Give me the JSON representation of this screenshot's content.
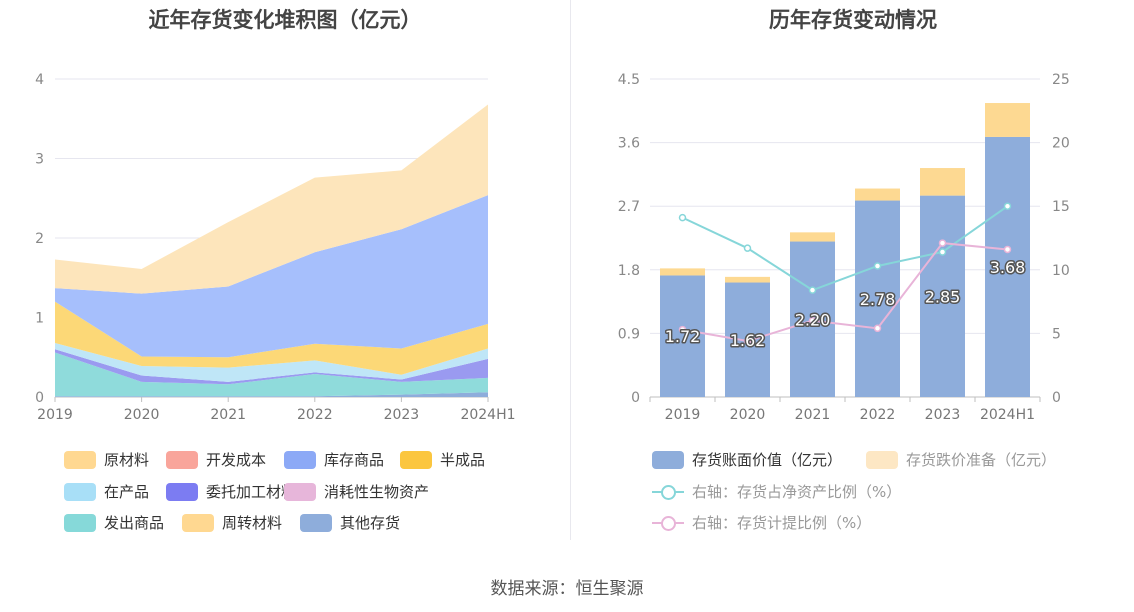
{
  "source_label": "数据来源：恒生聚源",
  "chart_data": [
    {
      "type": "area",
      "stacked": true,
      "title": "近年存货变化堆积图（亿元）",
      "categories": [
        "2019",
        "2020",
        "2021",
        "2022",
        "2023",
        "2024H1"
      ],
      "y_ticks": [
        "0",
        "1",
        "2",
        "3",
        "4"
      ],
      "ylim": [
        0,
        4
      ],
      "series": [
        {
          "name": "其他存货",
          "color": "#8eaddb",
          "values": [
            0.01,
            0.01,
            0.01,
            0.01,
            0.03,
            0.06
          ]
        },
        {
          "name": "发出商品",
          "color": "#8fdbdb",
          "values": [
            0.55,
            0.18,
            0.15,
            0.28,
            0.16,
            0.18
          ]
        },
        {
          "name": "委托加工材料",
          "color": "#9a9af0",
          "values": [
            0.04,
            0.08,
            0.03,
            0.02,
            0.03,
            0.24
          ]
        },
        {
          "name": "在产品",
          "color": "#bfe6f7",
          "values": [
            0.08,
            0.12,
            0.18,
            0.15,
            0.06,
            0.13
          ]
        },
        {
          "name": "半成品",
          "color": "#fcd877",
          "values": [
            0.52,
            0.12,
            0.13,
            0.21,
            0.33,
            0.31
          ]
        },
        {
          "name": "库存商品",
          "color": "#a6bffc",
          "values": [
            0.17,
            0.79,
            0.89,
            1.15,
            1.5,
            1.62
          ]
        },
        {
          "name": "原材料",
          "color": "#fde5bb",
          "values": [
            0.36,
            0.31,
            0.81,
            0.94,
            0.74,
            1.14
          ]
        },
        {
          "name": "开发成本",
          "color": "#f9a59b",
          "values": [
            0,
            0,
            0,
            0,
            0,
            0
          ]
        },
        {
          "name": "消耗性生物资产",
          "color": "#e7b6da",
          "values": [
            0,
            0,
            0,
            0,
            0,
            0
          ]
        },
        {
          "name": "周转材料",
          "color": "#ffd591",
          "values": [
            0,
            0,
            0,
            0,
            0,
            0
          ]
        }
      ],
      "legend": [
        {
          "name": "原材料",
          "color": "#ffd891"
        },
        {
          "name": "开发成本",
          "color": "#f9a59b"
        },
        {
          "name": "库存商品",
          "color": "#8ca9f6"
        },
        {
          "name": "半成品",
          "color": "#fbc63f"
        },
        {
          "name": "在产品",
          "color": "#a8dff7"
        },
        {
          "name": "委托加工材料",
          "color": "#7c7cf2"
        },
        {
          "name": "消耗性生物资产",
          "color": "#e7b6da"
        },
        {
          "name": "发出商品",
          "color": "#86d9d9"
        },
        {
          "name": "周转材料",
          "color": "#ffd891"
        },
        {
          "name": "其他存货",
          "color": "#8eaddb"
        }
      ]
    },
    {
      "type": "bar+line",
      "title": "历年存货变动情况",
      "categories": [
        "2019",
        "2020",
        "2021",
        "2022",
        "2023",
        "2024H1"
      ],
      "y_left_ticks": [
        "0",
        "0.9",
        "1.8",
        "2.7",
        "3.6",
        "4.5"
      ],
      "y_left_lim": [
        0,
        4.5
      ],
      "y_right_ticks": [
        "0",
        "5",
        "10",
        "15",
        "20",
        "25"
      ],
      "y_right_lim": [
        0,
        25
      ],
      "bars": [
        {
          "name": "存货账面价值（亿元）",
          "color": "#8eaddb",
          "values": [
            1.72,
            1.62,
            2.2,
            2.78,
            2.85,
            3.68
          ],
          "labels": [
            "1.72",
            "1.62",
            "2.20",
            "2.78",
            "2.85",
            "3.68"
          ]
        },
        {
          "name": "存货跌价准备（亿元）",
          "color": "#fdd992",
          "values": [
            0.1,
            0.08,
            0.13,
            0.17,
            0.39,
            0.48
          ]
        }
      ],
      "lines": [
        {
          "name": "右轴：存货占净资产比例（%）",
          "color": "#86d6d9",
          "values": [
            14.1,
            11.7,
            8.4,
            10.3,
            11.4,
            15.0
          ]
        },
        {
          "name": "右轴：存货计提比例（%）",
          "color": "#e8b4d8",
          "values": [
            5.3,
            4.4,
            6.0,
            5.4,
            12.1,
            11.6
          ]
        }
      ],
      "legend": [
        {
          "name": "存货账面价值（亿元）",
          "color": "#8eaddb",
          "kind": "box"
        },
        {
          "name": "存货跌价准备（亿元）",
          "color": "#fde7c4",
          "kind": "box",
          "muted": true
        },
        {
          "name": "右轴：存货占净资产比例（%）",
          "color": "#86d6d9",
          "kind": "line",
          "muted": true
        },
        {
          "name": "右轴：存货计提比例（%）",
          "color": "#e8b4d8",
          "kind": "line",
          "muted": true
        }
      ]
    }
  ]
}
